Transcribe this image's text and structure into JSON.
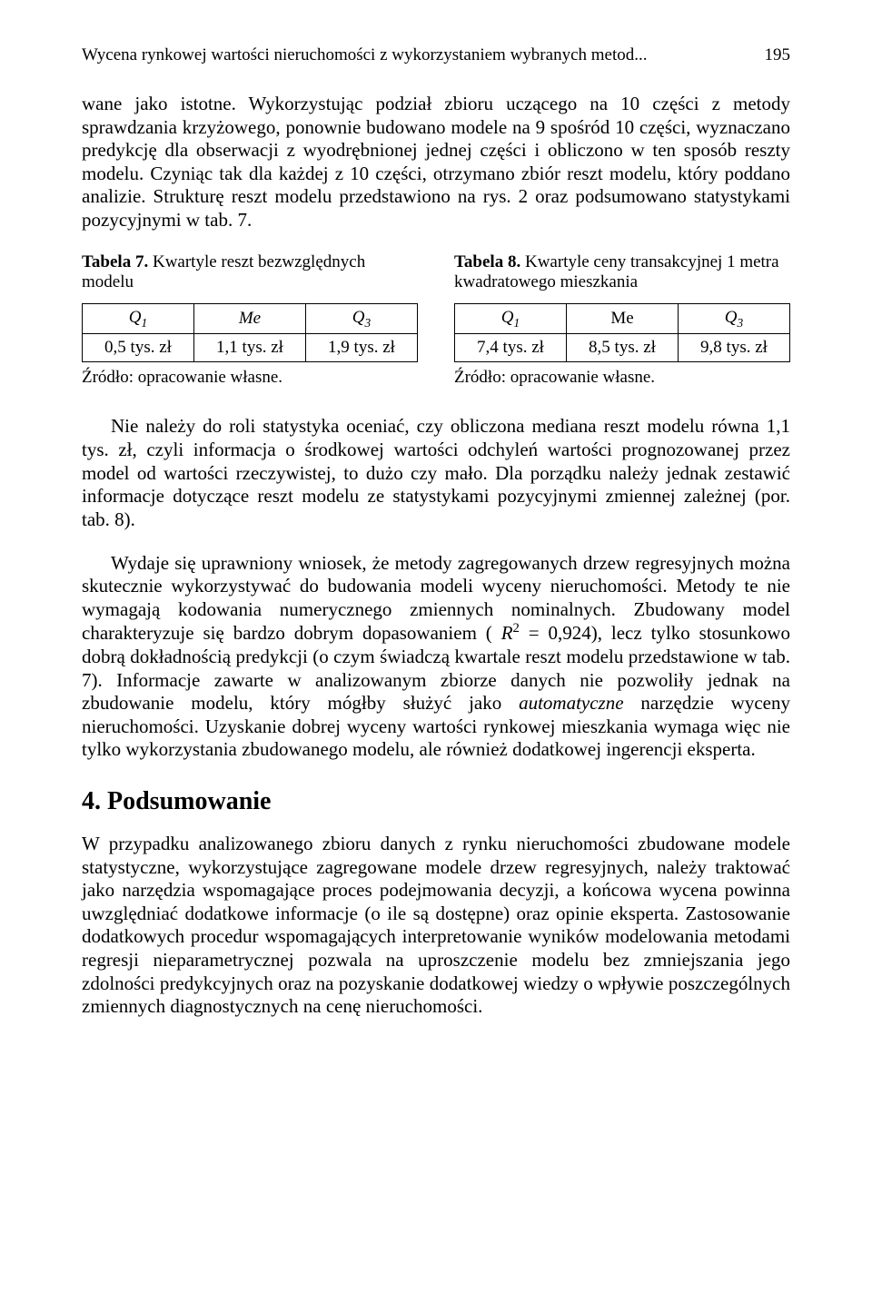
{
  "header": {
    "running_title": "Wycena rynkowej wartości nieruchomości z wykorzystaniem wybranych metod...",
    "page_number": "195"
  },
  "para1": "wane jako istotne. Wykorzystując podział zbioru uczącego na 10 części z metody sprawdzania krzyżowego, ponownie budowano modele na 9 spośród 10 części, wyznaczano predykcję dla obserwacji z wyodrębnionej jednej części i obliczono w ten sposób reszty modelu. Czyniąc tak dla każdej z 10 części, otrzymano zbiór reszt modelu, który poddano analizie. Strukturę reszt modelu przedstawiono na rys. 2 oraz podsumowano statystykami pozycyjnymi w tab. 7.",
  "table7": {
    "caption_prefix": "Tabela 7.",
    "caption_text": " Kwartyle reszt bezwzględnych modelu",
    "headers": {
      "q1": "Q",
      "q1_sub": "1",
      "me": "Me",
      "q3": "Q",
      "q3_sub": "3"
    },
    "row": {
      "q1": "0,5 tys. zł",
      "me": "1,1 tys. zł",
      "q3": "1,9 tys. zł"
    },
    "source": "Źródło: opracowanie własne."
  },
  "table8": {
    "caption_prefix": "Tabela 8.",
    "caption_text": " Kwartyle ceny transakcyjnej 1 metra kwadratowego mieszkania",
    "headers": {
      "q1": "Q",
      "q1_sub": "1",
      "me": "Me",
      "q3": "Q",
      "q3_sub": "3"
    },
    "row": {
      "q1": "7,4 tys. zł",
      "me": "8,5 tys. zł",
      "q3": "9,8 tys. zł"
    },
    "source": "Źródło: opracowanie własne."
  },
  "para2a": "Nie należy do roli statystyka oceniać, czy obliczona mediana reszt modelu równa 1,1 tys. zł, czyli informacja o środkowej wartości odchyleń wartości prognozowanej przez model od wartości rzeczywistej, to dużo czy mało. Dla porządku należy jednak zestawić informacje dotyczące reszt modelu ze statystykami pozycyjnymi zmiennej zależnej (por. tab. 8).",
  "para2b_pre": "Wydaje się uprawniony wniosek, że metody zagregowanych drzew regresyjnych można skutecznie wykorzystywać do budowania modeli wyceny nieruchomości. Metody te nie wymagają kodowania numerycznego zmiennych nominalnych. Zbudowany model charakteryzuje się bardzo dobrym dopasowaniem ( ",
  "r2_symbol": "R",
  "r2_sup": "2",
  "r2_value": " = 0,924), lecz tylko stosunkowo dobrą dokładnością predykcji (o czym świadczą kwartale reszt modelu przedstawione w tab. 7). Informacje zawarte w analizowanym zbiorze danych nie pozwoliły jednak na zbudowanie modelu, który mógłby służyć jako ",
  "auto_word": "automatyczne",
  "para2b_post": " narzędzie wyceny nieruchomości. Uzyskanie dobrej wyceny wartości rynkowej mieszkania wymaga więc nie tylko wykorzystania zbudowanego modelu, ale również dodatkowej ingerencji eksperta.",
  "section4": {
    "heading": "4. Podsumowanie",
    "para": "W przypadku analizowanego zbioru danych z rynku nieruchomości zbudowane modele statystyczne, wykorzystujące zagregowane modele drzew regresyjnych, należy traktować jako narzędzia wspomagające proces podejmowania decyzji, a końcowa wycena powinna uwzględniać dodatkowe informacje (o ile są dostępne) oraz opinie eksperta. Zastosowanie dodatkowych procedur wspomagających interpretowanie wyników modelowania metodami regresji nieparametrycznej pozwala na uproszczenie modelu bez zmniejszania jego zdolności predykcyjnych oraz na pozyskanie dodatkowej wiedzy o wpływie poszczególnych zmiennych diagnostycznych na cenę nieruchomości."
  }
}
